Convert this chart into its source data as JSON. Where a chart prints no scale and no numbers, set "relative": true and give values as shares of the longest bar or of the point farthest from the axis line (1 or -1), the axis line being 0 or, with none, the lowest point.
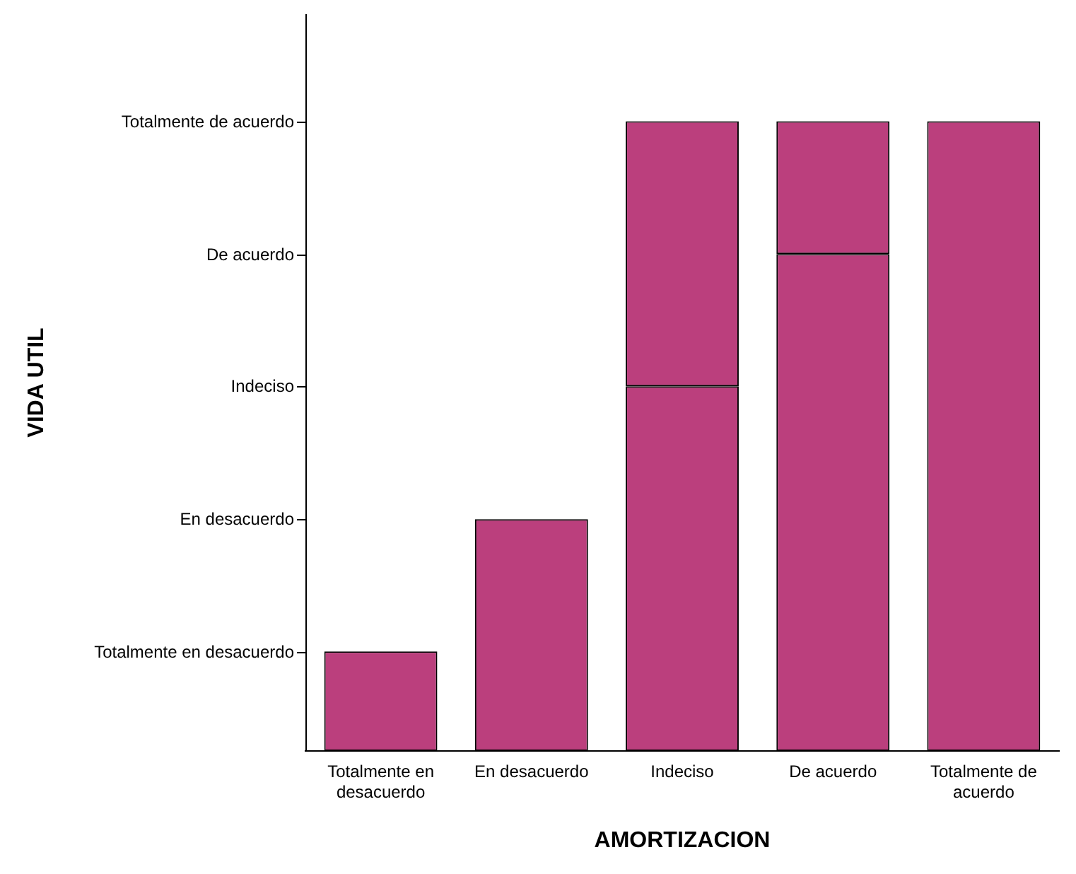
{
  "chart_data": {
    "type": "bar",
    "xlabel": "AMORTIZACION",
    "categories": [
      "Totalmente en desacuerdo",
      "En desacuerdo",
      "Indeciso",
      "De acuerdo",
      "Totalmente de acuerdo"
    ],
    "stacked": true,
    "relative": true,
    "series": [
      {
        "color": "#bb3f7d",
        "values": [
          0.158,
          0.368,
          0.579,
          0.789,
          1
        ]
      },
      {
        "color": "#bb3f7d",
        "values": [
          null,
          null,
          0.421,
          0.211,
          null
        ]
      }
    ],
    "annotations": [
      "Totalmente en desacuerdo",
      "En desacuerdo",
      "Indeciso",
      "De acuerdo",
      "Totalmente de acuerdo",
      "VIDA UTIL"
    ],
    "grid": false,
    "legend": false
  }
}
